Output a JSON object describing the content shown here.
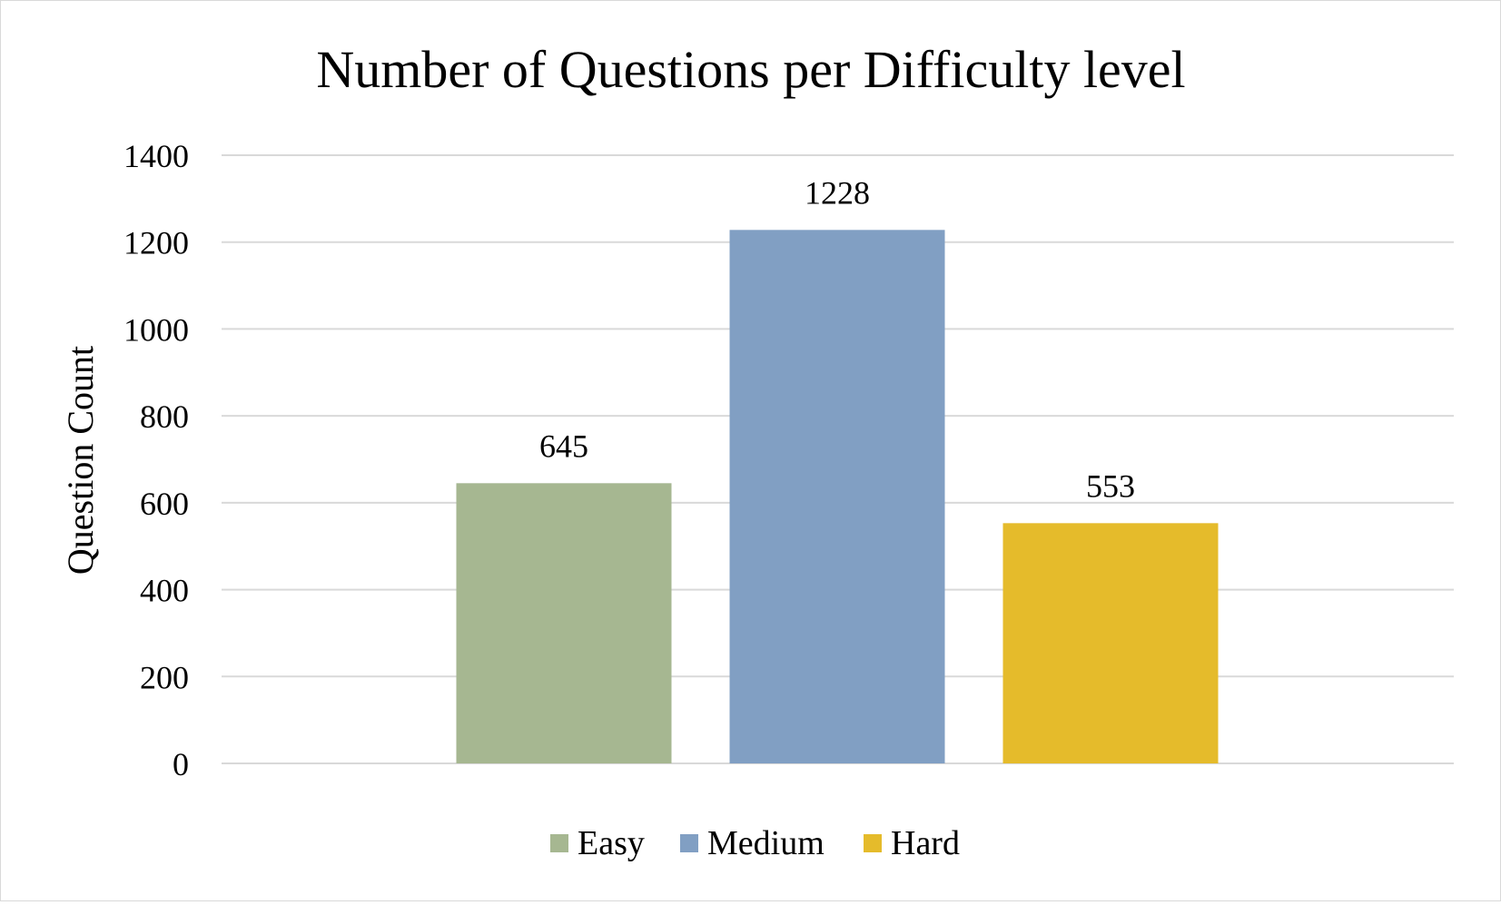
{
  "chart_data": {
    "type": "bar",
    "title": "Number of Questions per Difficulty level",
    "ylabel": "Question Count",
    "xlabel": "",
    "ylim": [
      0,
      1400
    ],
    "yticks": [
      0,
      200,
      400,
      600,
      800,
      1000,
      1200,
      1400
    ],
    "grid": true,
    "legend_position": "bottom",
    "series": [
      {
        "name": "Easy",
        "value": 645,
        "color": "#a6b791"
      },
      {
        "name": "Medium",
        "value": 1228,
        "color": "#819fc3"
      },
      {
        "name": "Hard",
        "value": 553,
        "color": "#e5bb2b"
      }
    ]
  }
}
